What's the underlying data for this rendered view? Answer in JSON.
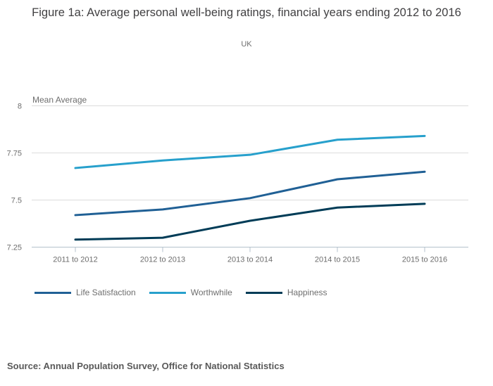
{
  "header": {
    "title": "Figure 1a: Average personal well-being ratings, financial years ending 2012 to 2016",
    "subtitle": "UK"
  },
  "chart_data": {
    "type": "line",
    "title": "Figure 1a: Average personal well-being ratings, financial years ending 2012 to 2016",
    "subtitle": "UK",
    "ylabel": "Mean Average",
    "xlabel": "",
    "categories": [
      "2011 to 2012",
      "2012 to 2013",
      "2013 to 2014",
      "2014 to 2015",
      "2015 to 2016"
    ],
    "series": [
      {
        "name": "Life Satisfaction",
        "color": "#206095",
        "values": [
          7.42,
          7.45,
          7.51,
          7.61,
          7.65
        ]
      },
      {
        "name": "Worthwhile",
        "color": "#27A0CC",
        "values": [
          7.67,
          7.71,
          7.74,
          7.82,
          7.84
        ]
      },
      {
        "name": "Happiness",
        "color": "#003C57",
        "values": [
          7.29,
          7.3,
          7.39,
          7.46,
          7.48
        ]
      }
    ],
    "ylim": [
      7.25,
      8
    ],
    "yticks": [
      "8",
      "7.75",
      "7.5",
      "7.25"
    ],
    "grid": true,
    "legend_position": "bottom",
    "colors": {
      "grid": "#dcdcdc",
      "axis": "#b4c2cc",
      "tick_text": "#6d6d6d",
      "axis_label_text": "#6d6d6d"
    }
  },
  "footer": {
    "source": "Source: Annual Population Survey, Office for National Statistics"
  }
}
